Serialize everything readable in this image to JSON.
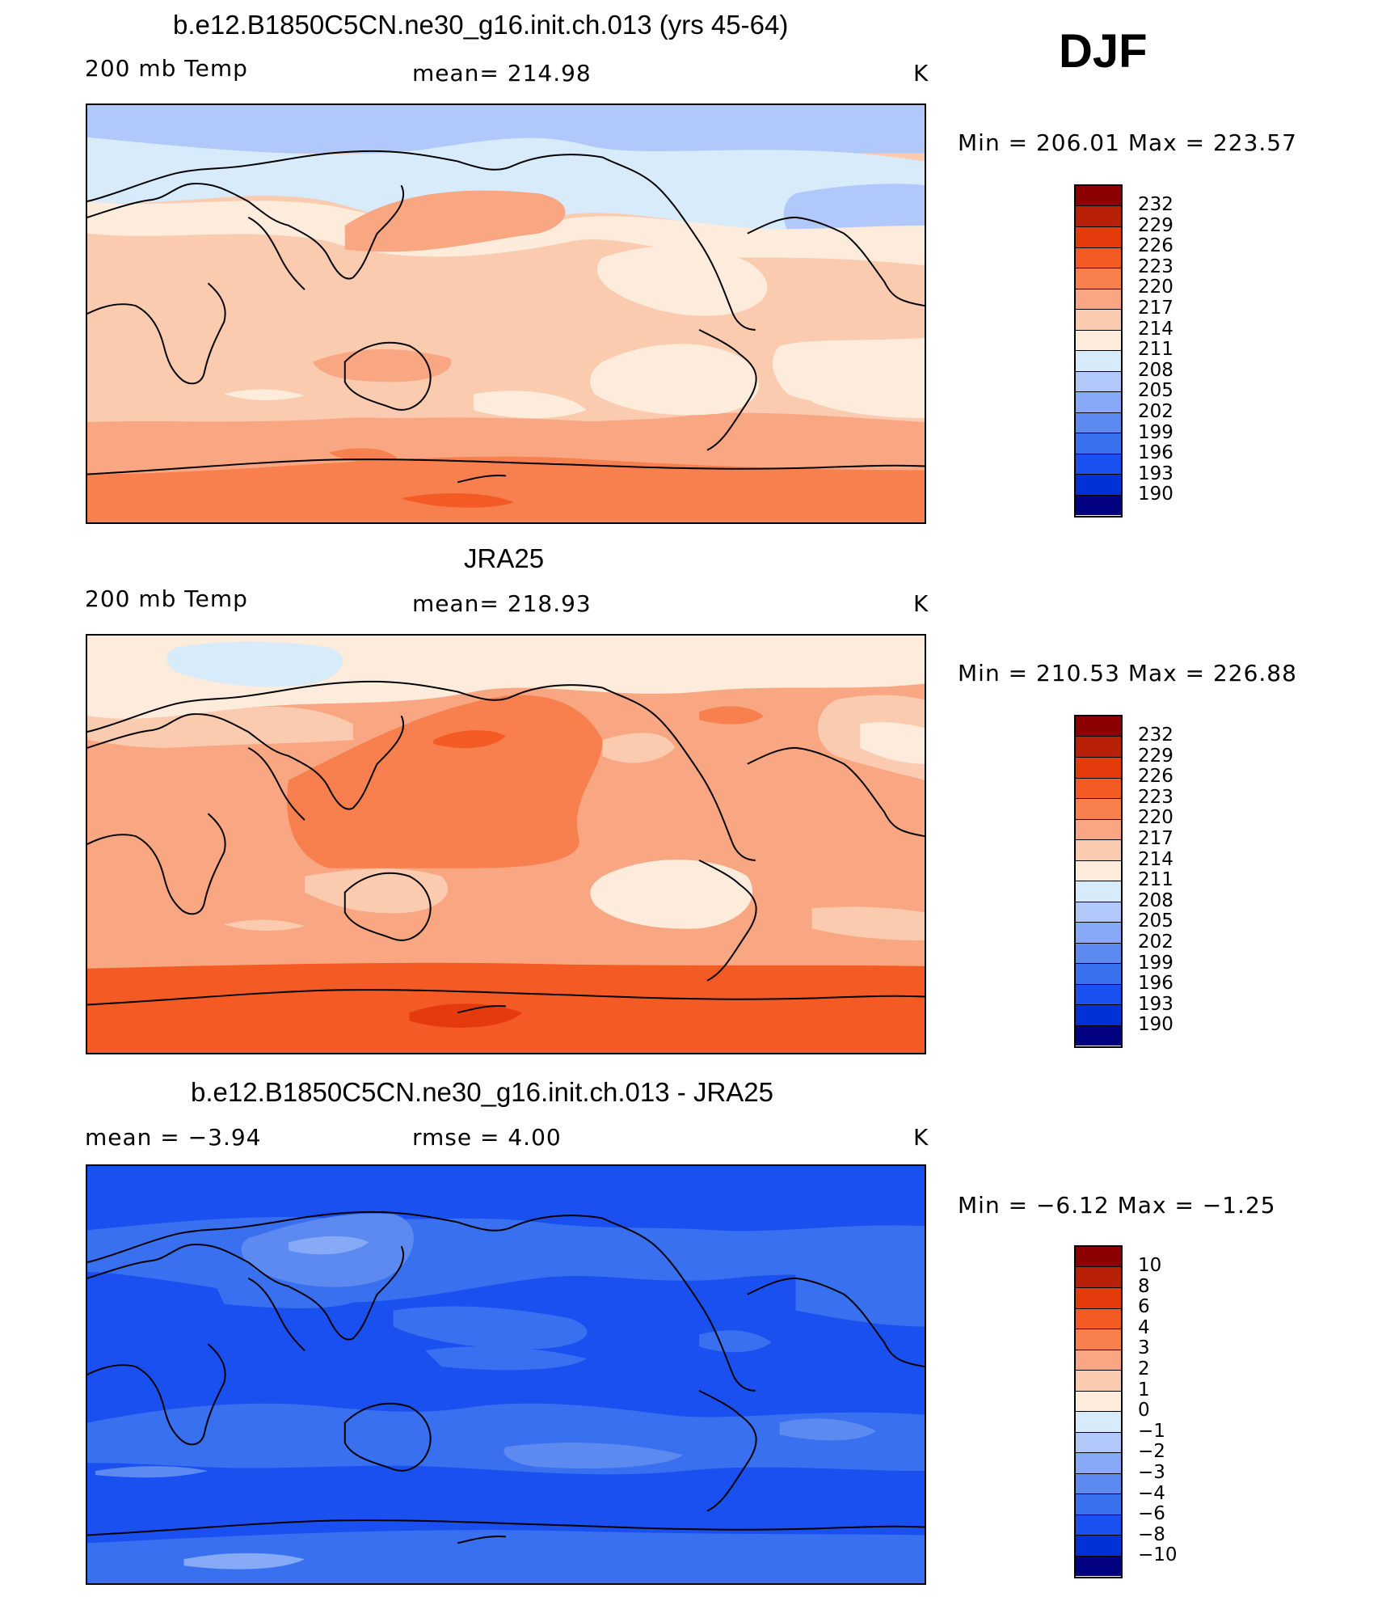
{
  "season": "DJF",
  "colors": {
    "temp_scale": [
      "#000080",
      "#0a1fa0",
      "#0030d8",
      "#1a50f0",
      "#3870f0",
      "#5c8af0",
      "#86aaf6",
      "#b0c8fa",
      "#d8ebfb",
      "#fdebdc",
      "#fbcbb0",
      "#f9a682",
      "#f7804e",
      "#f35a24",
      "#e53a0c",
      "#b82008",
      "#8b0000"
    ],
    "diff_scale": [
      "#000080",
      "#0a1fa0",
      "#0030d8",
      "#1a50f0",
      "#3870f0",
      "#5c8af0",
      "#86aaf6",
      "#b0c8fa",
      "#d8ebfb",
      "#fdebdc",
      "#fbcbb0",
      "#f9a682",
      "#f7804e",
      "#f35a24",
      "#e53a0c",
      "#b82008",
      "#8b0000"
    ],
    "coast": "#000000"
  },
  "panels": [
    {
      "title": "b.e12.B1850C5CN.ne30_g16.init.ch.013 (yrs 45-64)",
      "left_label": "200 mb Temp",
      "center_label": "mean=  214.98",
      "units": "K",
      "minmax": "Min  =  206.01  Max  =  223.57",
      "levels": [
        "232",
        "229",
        "226",
        "223",
        "220",
        "217",
        "214",
        "211",
        "208",
        "205",
        "202",
        "199",
        "196",
        "193",
        "190"
      ]
    },
    {
      "title": "JRA25",
      "left_label": "200 mb Temp",
      "center_label": "mean=  218.93",
      "units": "K",
      "minmax": "Min  =  210.53  Max  =  226.88",
      "levels": [
        "232",
        "229",
        "226",
        "223",
        "220",
        "217",
        "214",
        "211",
        "208",
        "205",
        "202",
        "199",
        "196",
        "193",
        "190"
      ]
    },
    {
      "title": "b.e12.B1850C5CN.ne30_g16.init.ch.013 - JRA25",
      "left_label": "mean  =     −3.94",
      "center_label": "rmse  =     4.00",
      "units": "K",
      "minmax": "Min  =    −6.12  Max  =    −1.25",
      "levels": [
        "10",
        "8",
        "6",
        "4",
        "3",
        "2",
        "1",
        "0",
        "−1",
        "−2",
        "−3",
        "−4",
        "−6",
        "−8",
        "−10"
      ]
    }
  ]
}
